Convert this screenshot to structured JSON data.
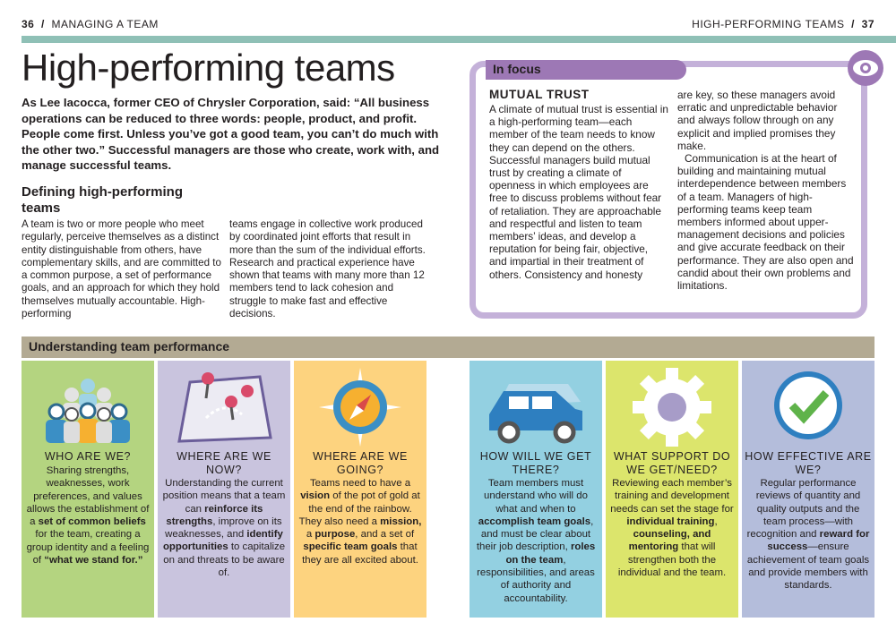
{
  "header": {
    "left_page": "36",
    "left_section": "MANAGING A TEAM",
    "right_section": "HIGH-PERFORMING TEAMS",
    "right_page": "37",
    "separator": "/"
  },
  "title": "High-performing teams",
  "intro": "As Lee Iacocca, former CEO of Chrysler Corporation, said: “All business operations can be reduced to three words: people, product, and profit. People come first. Unless you’ve got a good team, you can’t do much with the other two.” Successful managers are those who create, work with, and manage successful teams.",
  "defining": {
    "heading": "Defining high-performing teams",
    "col1": "A team is two or more people who meet regularly, perceive themselves as a distinct entity distinguishable from others, have complementary skills, and are committed to a common purpose, a set of performance goals, and an approach for which they hold themselves mutually accountable. High-performing",
    "col2": "teams engage in collective work produced by coordinated joint efforts that result in more than the sum of the individual efforts. Research and practical experience have shown that teams with many more than 12 members tend to lack cohesion and struggle to make fast and effective decisions."
  },
  "in_focus": {
    "label": "In focus",
    "title": "MUTUAL TRUST",
    "col1": "A climate of mutual trust is essential in a high-performing team—each member of the team needs to know they can depend on the others. Successful managers build mutual trust by creating a climate of openness in which employees are free to discuss problems without fear of retaliation. They are approachable and respectful and listen to team members’ ideas, and develop a reputation for being fair, objective, and impartial in their treatment of others. Consistency and honesty",
    "col2a": "are key, so these managers avoid erratic and unpredictable behavior and always follow through on any explicit and implied promises they make.",
    "col2b": "Communication is at the heart of building and maintaining mutual interdependence between members of a team. Managers of high-performing teams keep team members informed about upper-management decisions and policies and give accurate feedback on their performance. They are also open and candid about their own problems and limitations.",
    "icon": "eye-icon"
  },
  "performance": {
    "heading": "Understanding team performance",
    "panels": [
      {
        "title": "WHO ARE WE?",
        "icon": "people-icon",
        "color": "#b4d480",
        "body": [
          {
            "t": "Sharing strengths, weaknesses, work preferences, and values allows the establishment of a "
          },
          {
            "t": "set of common beliefs",
            "b": true
          },
          {
            "t": " for the team, creating a group identity and a feeling of "
          },
          {
            "t": "“what we stand for.”",
            "b": true
          }
        ]
      },
      {
        "title": "WHERE ARE WE NOW?",
        "icon": "map-icon",
        "color": "#c9c4de",
        "body": [
          {
            "t": "Understanding the current position means that a team can "
          },
          {
            "t": "reinforce its strengths",
            "b": true
          },
          {
            "t": ", improve on its weaknesses, and "
          },
          {
            "t": "identify opportunities",
            "b": true
          },
          {
            "t": " to capitalize on and threats to be aware of."
          }
        ]
      },
      {
        "title": "WHERE ARE WE GOING?",
        "icon": "compass-icon",
        "color": "#fdd37f",
        "body": [
          {
            "t": "Teams need to have a "
          },
          {
            "t": "vision",
            "b": true
          },
          {
            "t": " of the pot of gold at the end of the rainbow. They also need a "
          },
          {
            "t": "mission,",
            "b": true
          },
          {
            "t": " a "
          },
          {
            "t": "purpose",
            "b": true
          },
          {
            "t": ", and a set of "
          },
          {
            "t": "specific team goals",
            "b": true
          },
          {
            "t": " that they are all excited about."
          }
        ]
      },
      {
        "title": "HOW WILL WE GET THERE?",
        "icon": "car-icon",
        "color": "#93d0e1",
        "body": [
          {
            "t": "Team members must understand who will do what and when to "
          },
          {
            "t": "accomplish team goals",
            "b": true
          },
          {
            "t": ", and must be clear about their job description, "
          },
          {
            "t": "roles on the team",
            "b": true
          },
          {
            "t": ", responsibilities, and areas of authority and accountability."
          }
        ]
      },
      {
        "title": "WHAT SUPPORT DO WE GET/NEED?",
        "icon": "gear-icon",
        "color": "#dce56c",
        "body": [
          {
            "t": "Reviewing each member’s training and development needs can set the stage for "
          },
          {
            "t": "individual training",
            "b": true
          },
          {
            "t": ", "
          },
          {
            "t": "counseling, and mentoring",
            "b": true
          },
          {
            "t": " that will strengthen both the individual and the team."
          }
        ]
      },
      {
        "title": "HOW EFFECTIVE ARE WE?",
        "icon": "checkmark-icon",
        "color": "#b4bddb",
        "body": [
          {
            "t": "Regular performance reviews of quantity and quality outputs and the team process—with recognition and "
          },
          {
            "t": "reward for success",
            "b": true
          },
          {
            "t": "—ensure achievement of team goals and provide members with standards."
          }
        ]
      }
    ]
  },
  "colors": {
    "rule": "#8fc0b6",
    "focus_border": "#c4b1d9",
    "focus_tab": "#9d78b5",
    "band": "#b3aa93"
  }
}
